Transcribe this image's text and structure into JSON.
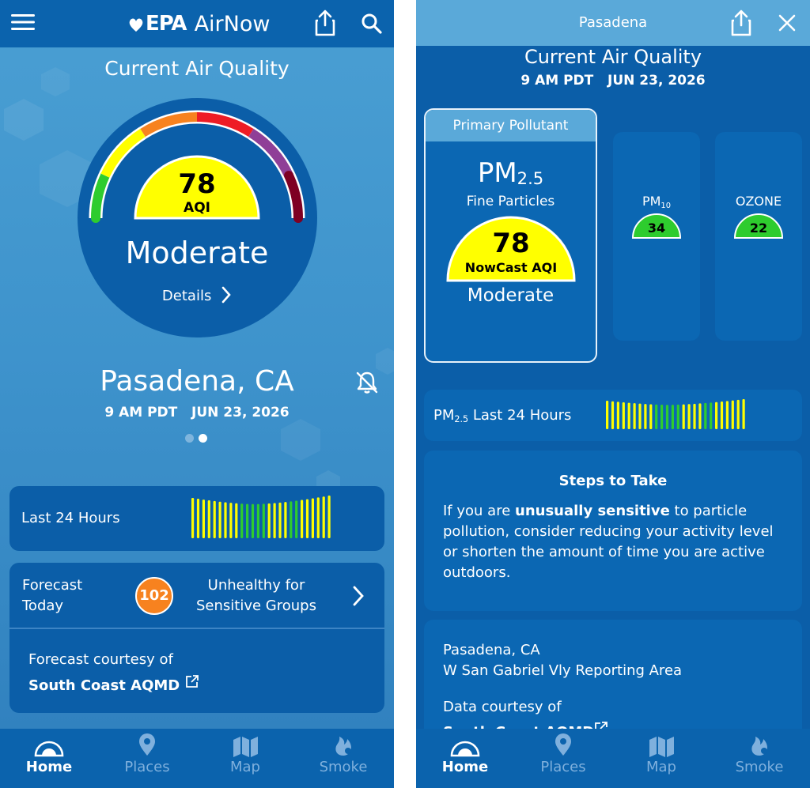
{
  "colors": {
    "aqi_good": "#2ecc2e",
    "aqi_moderate": "#ffff00",
    "aqi_usg": "#f7821f",
    "aqi_unhealthy": "#ee1c25",
    "aqi_very_unhealthy": "#8f3f97",
    "aqi_hazardous": "#7e0023",
    "header_blue": "#0b63ad",
    "panel_blue": "#0b5ea8",
    "accent_light": "#5aa9d9"
  },
  "left": {
    "header": {
      "menu_icon": "hamburger-icon",
      "brand_logo": "EPA",
      "brand_app": "AirNow",
      "share_icon": "share-icon",
      "search_icon": "search-icon"
    },
    "title": "Current Air Quality",
    "gauge": {
      "aqi": "78",
      "aqi_label": "AQI",
      "category": "Moderate",
      "details_label": "Details"
    },
    "location": {
      "city": "Pasadena, CA",
      "time": "9 AM PDT",
      "date": "JUN 23, 2026",
      "alert_icon": "bell-off-icon"
    },
    "pager": {
      "count": 2,
      "active": 2
    },
    "last24": {
      "label": "Last 24 Hours",
      "bars": [
        "y",
        "y",
        "y",
        "y",
        "y",
        "y",
        "y",
        "y",
        "y",
        "g",
        "g",
        "g",
        "g",
        "g",
        "y",
        "y",
        "y",
        "y",
        "g",
        "g",
        "y",
        "y",
        "y",
        "y",
        "y",
        "y"
      ]
    },
    "forecast": {
      "label_line1": "Forecast",
      "label_line2": "Today",
      "aqi": "102",
      "category_line1": "Unhealthy for",
      "category_line2": "Sensitive Groups",
      "courtesy": "Forecast courtesy of",
      "source": "South Coast AQMD"
    },
    "nav": [
      {
        "label": "Home",
        "icon": "home-gauge-icon",
        "active": true
      },
      {
        "label": "Places",
        "icon": "location-pin-icon",
        "active": false
      },
      {
        "label": "Map",
        "icon": "map-icon",
        "active": false
      },
      {
        "label": "Smoke",
        "icon": "smoke-fire-icon",
        "active": false
      }
    ]
  },
  "right": {
    "header": {
      "city": "Pasadena",
      "share_icon": "share-icon",
      "close_icon": "close-icon"
    },
    "title": "Current Air Quality",
    "time": "9 AM PDT",
    "date": "JUN 23, 2026",
    "primary": {
      "header": "Primary Pollutant",
      "name": "PM",
      "name_sub": "2.5",
      "desc": "Fine Particles",
      "aqi": "78",
      "aqi_label": "NowCast AQI",
      "category": "Moderate"
    },
    "pollutants": [
      {
        "name": "PM",
        "sub": "10",
        "aqi": "34"
      },
      {
        "name": "OZONE",
        "sub": "",
        "aqi": "22"
      }
    ],
    "last24": {
      "label": "PM",
      "label_sub": "2.5",
      "label_rest": " Last 24 Hours",
      "bars": [
        "y",
        "y",
        "y",
        "y",
        "y",
        "y",
        "y",
        "y",
        "y",
        "g",
        "g",
        "g",
        "g",
        "g",
        "y",
        "y",
        "y",
        "y",
        "g",
        "g",
        "y",
        "y",
        "y",
        "y",
        "y",
        "y"
      ]
    },
    "steps": {
      "heading": "Steps to Take",
      "text_before": "If you are ",
      "text_bold": "unusually sensitive",
      "text_after": " to particle pollution, consider reducing your activity level or shorten the amount of time you are active outdoors."
    },
    "location": {
      "city": "Pasadena, CA",
      "area": "W San Gabriel Vly Reporting Area",
      "courtesy": "Data courtesy of",
      "source": "South Coast AQMD"
    },
    "nav": [
      {
        "label": "Home",
        "icon": "home-gauge-icon",
        "active": true
      },
      {
        "label": "Places",
        "icon": "location-pin-icon",
        "active": false
      },
      {
        "label": "Map",
        "icon": "map-icon",
        "active": false
      },
      {
        "label": "Smoke",
        "icon": "smoke-fire-icon",
        "active": false
      }
    ]
  }
}
